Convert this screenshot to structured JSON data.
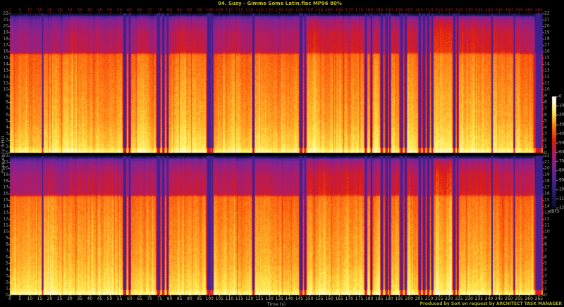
{
  "title": {
    "text": "04. Susy - Gimme Some Latin.flac MP96 80%"
  },
  "footer": {
    "text": "Produced by SoX on request by ARCHITECT TASK MANAGER"
  },
  "colors": {
    "background": "#000000",
    "title_text": "#bdbd2a",
    "footer_text": "#a9a920",
    "top_axis_text": "#8e2a1e",
    "bottom_axis_text": "#c2c28a",
    "axis_label_text": "#a0a0a0",
    "freq_tick_text": "#9f9f9f",
    "colorbar_tick_text": "#b5b5b5"
  },
  "axes": {
    "time_label": "Time (s)",
    "freq_label": "Frequency (kHz)",
    "colorbar_label": "dBFS",
    "time_ticks": [
      0,
      5,
      10,
      15,
      20,
      25,
      30,
      35,
      40,
      45,
      50,
      55,
      60,
      65,
      70,
      75,
      80,
      85,
      90,
      95,
      100,
      105,
      110,
      115,
      120,
      125,
      130,
      135,
      140,
      145,
      150,
      155,
      160,
      165,
      170,
      175,
      180,
      185,
      190,
      195,
      200,
      205,
      210,
      215,
      220,
      225,
      230,
      235,
      240,
      245,
      250,
      255,
      260,
      265
    ],
    "freq_ticks_khz": [
      22,
      21,
      20,
      19,
      18,
      17,
      16,
      15,
      14,
      13,
      12,
      11,
      10,
      9,
      8,
      7,
      6,
      5,
      4,
      3,
      2,
      1,
      0
    ],
    "db_ticks": [
      "-0",
      "-10",
      "-20",
      "-30",
      "-40",
      "-50",
      "-60",
      "-70",
      "-80",
      "-90",
      "-100",
      "-110",
      "-120"
    ]
  },
  "chart_data": {
    "type": "heatmap",
    "subtype": "audio-spectrogram",
    "channels": 2,
    "time_range_s": [
      0,
      267
    ],
    "freq_range_khz": [
      0,
      22
    ],
    "db_range": [
      -120,
      0
    ],
    "legend_position": "right",
    "palette_db_hex": [
      [
        0,
        "#ffffff"
      ],
      [
        -8,
        "#fff7bb"
      ],
      [
        -16,
        "#ffee55"
      ],
      [
        -24,
        "#ffb62b"
      ],
      [
        -32,
        "#ff7714"
      ],
      [
        -40,
        "#f44b0e"
      ],
      [
        -48,
        "#de1e10"
      ],
      [
        -56,
        "#c31b45"
      ],
      [
        -64,
        "#a41e74"
      ],
      [
        -76,
        "#7c2597"
      ],
      [
        -88,
        "#54239b"
      ],
      [
        -100,
        "#331f7d"
      ],
      [
        -110,
        "#1c1757"
      ],
      [
        -120,
        "#0d0d30"
      ]
    ],
    "base_profile_khz_db": [
      [
        0,
        -9
      ],
      [
        0.3,
        -11
      ],
      [
        1,
        -18
      ],
      [
        5,
        -25
      ],
      [
        11,
        -30
      ],
      [
        15.5,
        -34
      ]
    ],
    "sections_16khz_band_db": [
      [
        0,
        30,
        -62
      ],
      [
        30,
        57,
        -56
      ],
      [
        57,
        74,
        -58
      ],
      [
        74,
        100,
        -55
      ],
      [
        100,
        146,
        -57
      ],
      [
        146,
        178,
        -50
      ],
      [
        178,
        186,
        -57
      ],
      [
        186,
        205,
        -53
      ],
      [
        205,
        212,
        -50
      ],
      [
        212,
        224,
        -46
      ],
      [
        224,
        252,
        -50
      ],
      [
        252,
        263,
        -54
      ],
      [
        263,
        267,
        -92
      ]
    ],
    "quiet_stripes_t_w": [
      [
        16.2,
        0.6
      ],
      [
        57.4,
        1.2
      ],
      [
        59.8,
        0.8
      ],
      [
        74.2,
        1.4
      ],
      [
        76.7,
        0.9
      ],
      [
        78.8,
        0.7
      ],
      [
        99.6,
        1.6
      ],
      [
        101.3,
        0.8
      ],
      [
        121.8,
        0.8
      ],
      [
        145.7,
        1.2
      ],
      [
        147.8,
        0.9
      ],
      [
        178.1,
        0.9
      ],
      [
        180.9,
        0.7
      ],
      [
        186.2,
        1.0
      ],
      [
        188.6,
        1.2
      ],
      [
        190.3,
        0.7
      ],
      [
        196.0,
        1.3
      ],
      [
        198.1,
        0.8
      ],
      [
        205.2,
        1.0
      ],
      [
        207.3,
        1.1
      ],
      [
        209.4,
        1.0
      ],
      [
        211.5,
        0.8
      ],
      [
        222.4,
        1.0
      ],
      [
        224.2,
        0.7
      ],
      [
        241.4,
        0.5
      ],
      [
        252.5,
        0.6
      ],
      [
        264.8,
        2.8
      ]
    ],
    "loud_boosts_t0_t1_db": [
      [
        212,
        224,
        3
      ]
    ]
  }
}
